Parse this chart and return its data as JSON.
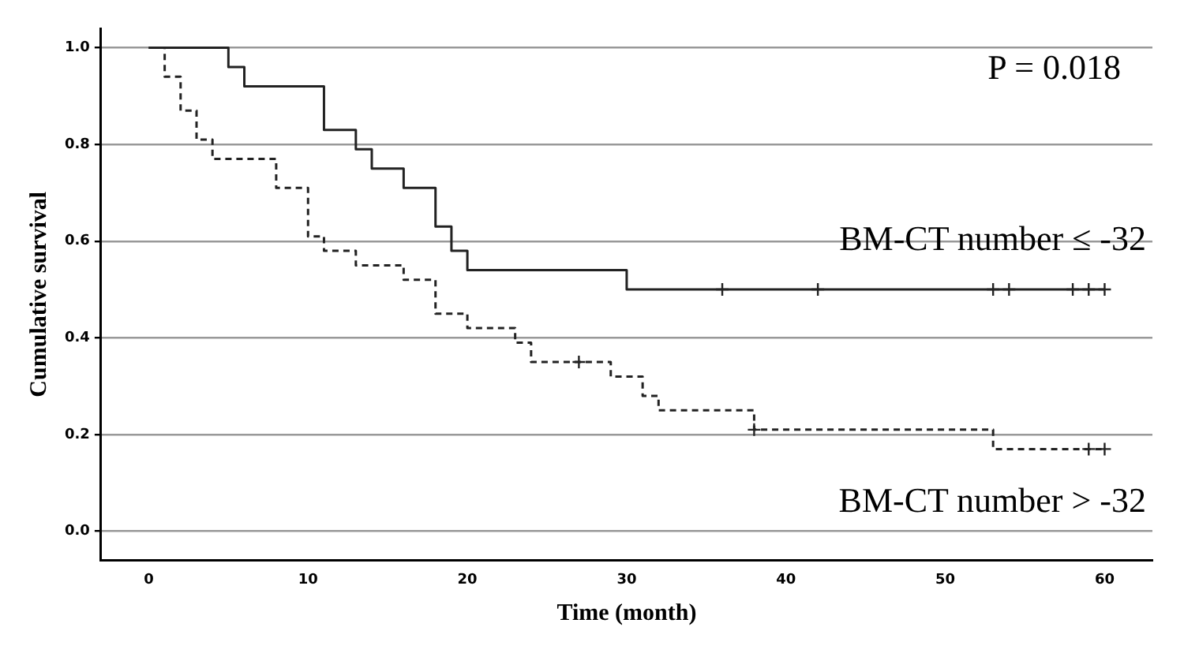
{
  "chart_data": {
    "type": "step",
    "xlabel": "Time (month)",
    "ylabel": "Cumulative survival",
    "annotations": [
      "P = 0.018"
    ],
    "xlim": [
      -3,
      63
    ],
    "xticks": [
      0,
      10,
      20,
      30,
      40,
      50,
      60
    ],
    "ylim": [
      -0.06,
      1.04
    ],
    "yticks": [
      {
        "value": 0,
        "label": "0.0"
      },
      {
        "value": 0.2,
        "label": "0.2"
      },
      {
        "value": 0.4,
        "label": "0.4"
      },
      {
        "value": 0.6,
        "label": "0.6"
      },
      {
        "value": 0.8,
        "label": "0.8"
      },
      {
        "value": 1,
        "label": "1.0"
      }
    ],
    "grid": "y",
    "legend": false,
    "series": [
      {
        "name": "BM-CT number ≤ -32",
        "color": "#222222",
        "line_style": "solid",
        "marker": "none",
        "x": [
          0,
          5,
          6,
          11,
          13,
          14,
          16,
          18,
          19,
          20,
          30,
          60
        ],
        "values": [
          1,
          0.96,
          0.92,
          0.83,
          0.79,
          0.75,
          0.71,
          0.63,
          0.58,
          0.54,
          0.5,
          0.5
        ]
      },
      {
        "name": "BM-CT number > -32",
        "color": "#222222",
        "line_style": "dashed",
        "marker": "none",
        "x": [
          0,
          1,
          2,
          3,
          4,
          8,
          10,
          11,
          13,
          16,
          18,
          20,
          23,
          24,
          29,
          31,
          32,
          38,
          53,
          60
        ],
        "values": [
          1,
          0.94,
          0.87,
          0.81,
          0.77,
          0.71,
          0.61,
          0.58,
          0.55,
          0.52,
          0.45,
          0.42,
          0.39,
          0.35,
          0.32,
          0.28,
          0.25,
          0.21,
          0.17,
          0.17
        ]
      },
      {
        "type": "scatter",
        "color": "#222222",
        "marker": "cross",
        "x": [
          36,
          42,
          53,
          54,
          58,
          59,
          60
        ],
        "values": [
          0.5,
          0.5,
          0.5,
          0.5,
          0.5,
          0.5,
          0.5
        ]
      },
      {
        "type": "scatter",
        "color": "#222222",
        "marker": "cross",
        "x": [
          27,
          38,
          59,
          60
        ],
        "values": [
          0.35,
          0.21,
          0.17,
          0.17
        ]
      }
    ]
  }
}
